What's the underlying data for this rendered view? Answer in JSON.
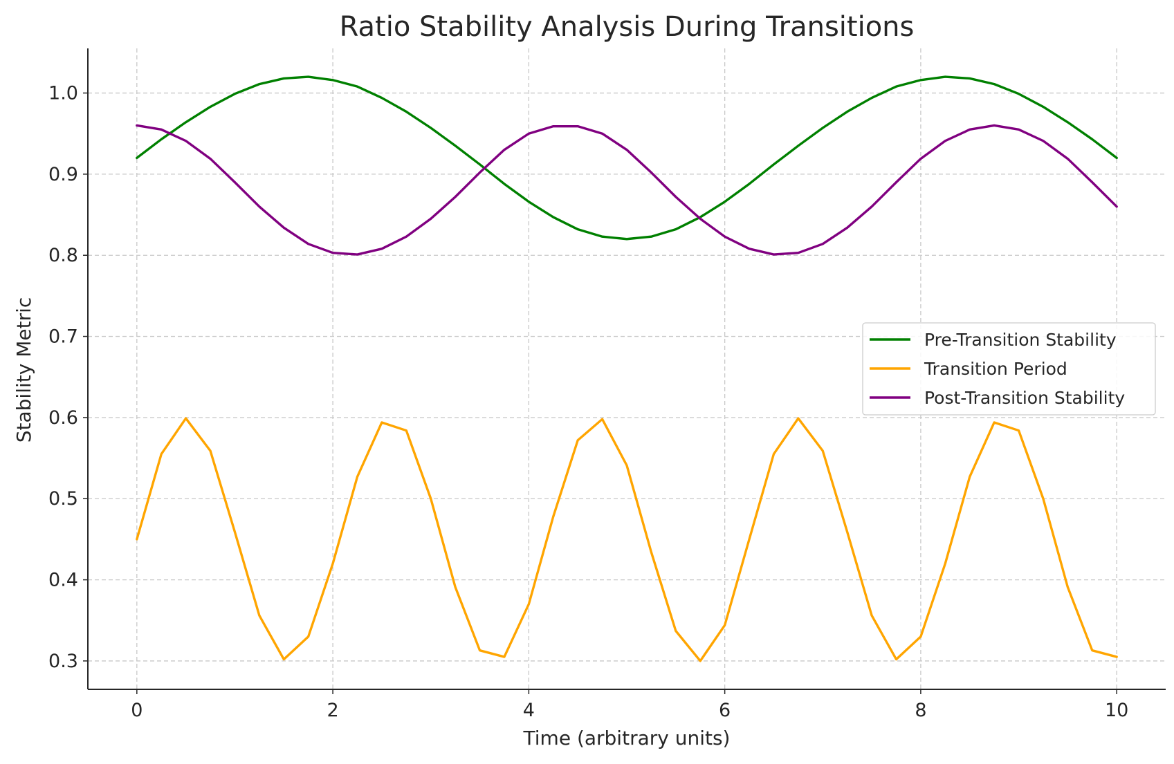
{
  "chart_data": {
    "type": "line",
    "title": "Ratio Stability Analysis During Transitions",
    "xlabel": "Time (arbitrary units)",
    "ylabel": "Stability Metric",
    "xlim": [
      -0.5,
      10.5
    ],
    "ylim": [
      0.265,
      1.055
    ],
    "xticks": [
      0,
      2,
      4,
      6,
      8,
      10
    ],
    "xtick_labels": [
      "0",
      "2",
      "4",
      "6",
      "8",
      "10"
    ],
    "yticks": [
      0.3,
      0.4,
      0.5,
      0.6,
      0.7,
      0.8,
      0.9,
      1.0
    ],
    "ytick_labels": [
      "0.3",
      "0.4",
      "0.5",
      "0.6",
      "0.7",
      "0.8",
      "0.9",
      "1.0"
    ],
    "grid": true,
    "legend_position": "center-right",
    "x": [
      0,
      0.25,
      0.5,
      0.75,
      1,
      1.25,
      1.5,
      1.75,
      2,
      2.25,
      2.5,
      2.75,
      3,
      3.25,
      3.5,
      3.75,
      4,
      4.25,
      4.5,
      4.75,
      5,
      5.25,
      5.5,
      5.75,
      6,
      6.25,
      6.5,
      6.75,
      7,
      7.25,
      7.5,
      7.75,
      8,
      8.25,
      8.5,
      8.75,
      9,
      9.25,
      9.5,
      9.75,
      10
    ],
    "series": [
      {
        "name": "Pre-Transition Stability",
        "color": "#008000",
        "values": [
          0.92,
          0.943,
          0.964,
          0.983,
          0.999,
          1.011,
          1.018,
          1.02,
          1.016,
          1.008,
          0.994,
          0.977,
          0.957,
          0.935,
          0.912,
          0.888,
          0.866,
          0.847,
          0.832,
          0.823,
          0.82,
          0.823,
          0.832,
          0.847,
          0.866,
          0.888,
          0.912,
          0.935,
          0.957,
          0.977,
          0.994,
          1.008,
          1.016,
          1.02,
          1.018,
          1.011,
          0.999,
          0.983,
          0.964,
          0.943,
          0.92
        ]
      },
      {
        "name": "Transition Period",
        "color": "#FFA500",
        "values": [
          0.45,
          0.555,
          0.599,
          0.559,
          0.459,
          0.356,
          0.302,
          0.33,
          0.42,
          0.527,
          0.594,
          0.584,
          0.5,
          0.391,
          0.313,
          0.305,
          0.37,
          0.478,
          0.572,
          0.598,
          0.541,
          0.434,
          0.337,
          0.3,
          0.344,
          0.45,
          0.555,
          0.599,
          0.559,
          0.459,
          0.356,
          0.302,
          0.33,
          0.42,
          0.527,
          0.594,
          0.584,
          0.5,
          0.391,
          0.313,
          0.305
        ]
      },
      {
        "name": "Post-Transition Stability",
        "color": "#800080",
        "values": [
          0.96,
          0.955,
          0.941,
          0.919,
          0.89,
          0.86,
          0.834,
          0.814,
          0.803,
          0.801,
          0.808,
          0.823,
          0.845,
          0.872,
          0.902,
          0.93,
          0.95,
          0.959,
          0.959,
          0.95,
          0.93,
          0.902,
          0.872,
          0.845,
          0.823,
          0.808,
          0.801,
          0.803,
          0.814,
          0.834,
          0.86,
          0.89,
          0.919,
          0.941,
          0.955,
          0.96,
          0.955,
          0.941,
          0.919,
          0.89,
          0.86
        ]
      }
    ]
  }
}
